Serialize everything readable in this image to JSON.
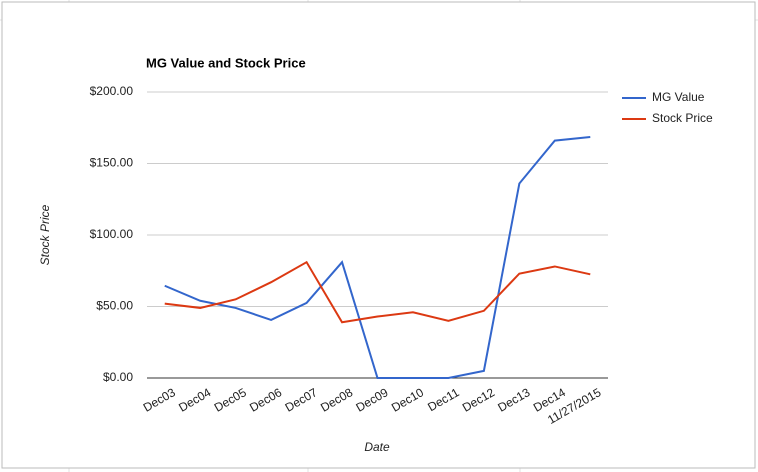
{
  "chart_data": {
    "type": "line",
    "title": "MG Value and Stock Price",
    "x_label": "Date",
    "y_label": "Stock Price",
    "categories": [
      "Dec03",
      "Dec04",
      "Dec05",
      "Dec06",
      "Dec07",
      "Dec08",
      "Dec09",
      "Dec10",
      "Dec11",
      "Dec12",
      "Dec13",
      "Dec14",
      "11/27/2015"
    ],
    "series": [
      {
        "name": "MG Value",
        "color": "#3366cc",
        "values": [
          64.5,
          54,
          49,
          40.6,
          52.5,
          81,
          0,
          0,
          0,
          5,
          136,
          166,
          168.5
        ]
      },
      {
        "name": "Stock Price",
        "color": "#dc3912",
        "values": [
          52,
          49,
          55,
          67,
          81,
          39,
          43,
          46,
          40,
          47,
          73,
          78,
          72.5
        ]
      }
    ],
    "ylim": [
      0,
      200
    ],
    "yticks": [
      {
        "value": 0,
        "label": "$0.00"
      },
      {
        "value": 50,
        "label": "$50.00"
      },
      {
        "value": 100,
        "label": "$100.00"
      },
      {
        "value": 150,
        "label": "$150.00"
      },
      {
        "value": 200,
        "label": "$200.00"
      }
    ],
    "grid": true,
    "legend": "right"
  }
}
